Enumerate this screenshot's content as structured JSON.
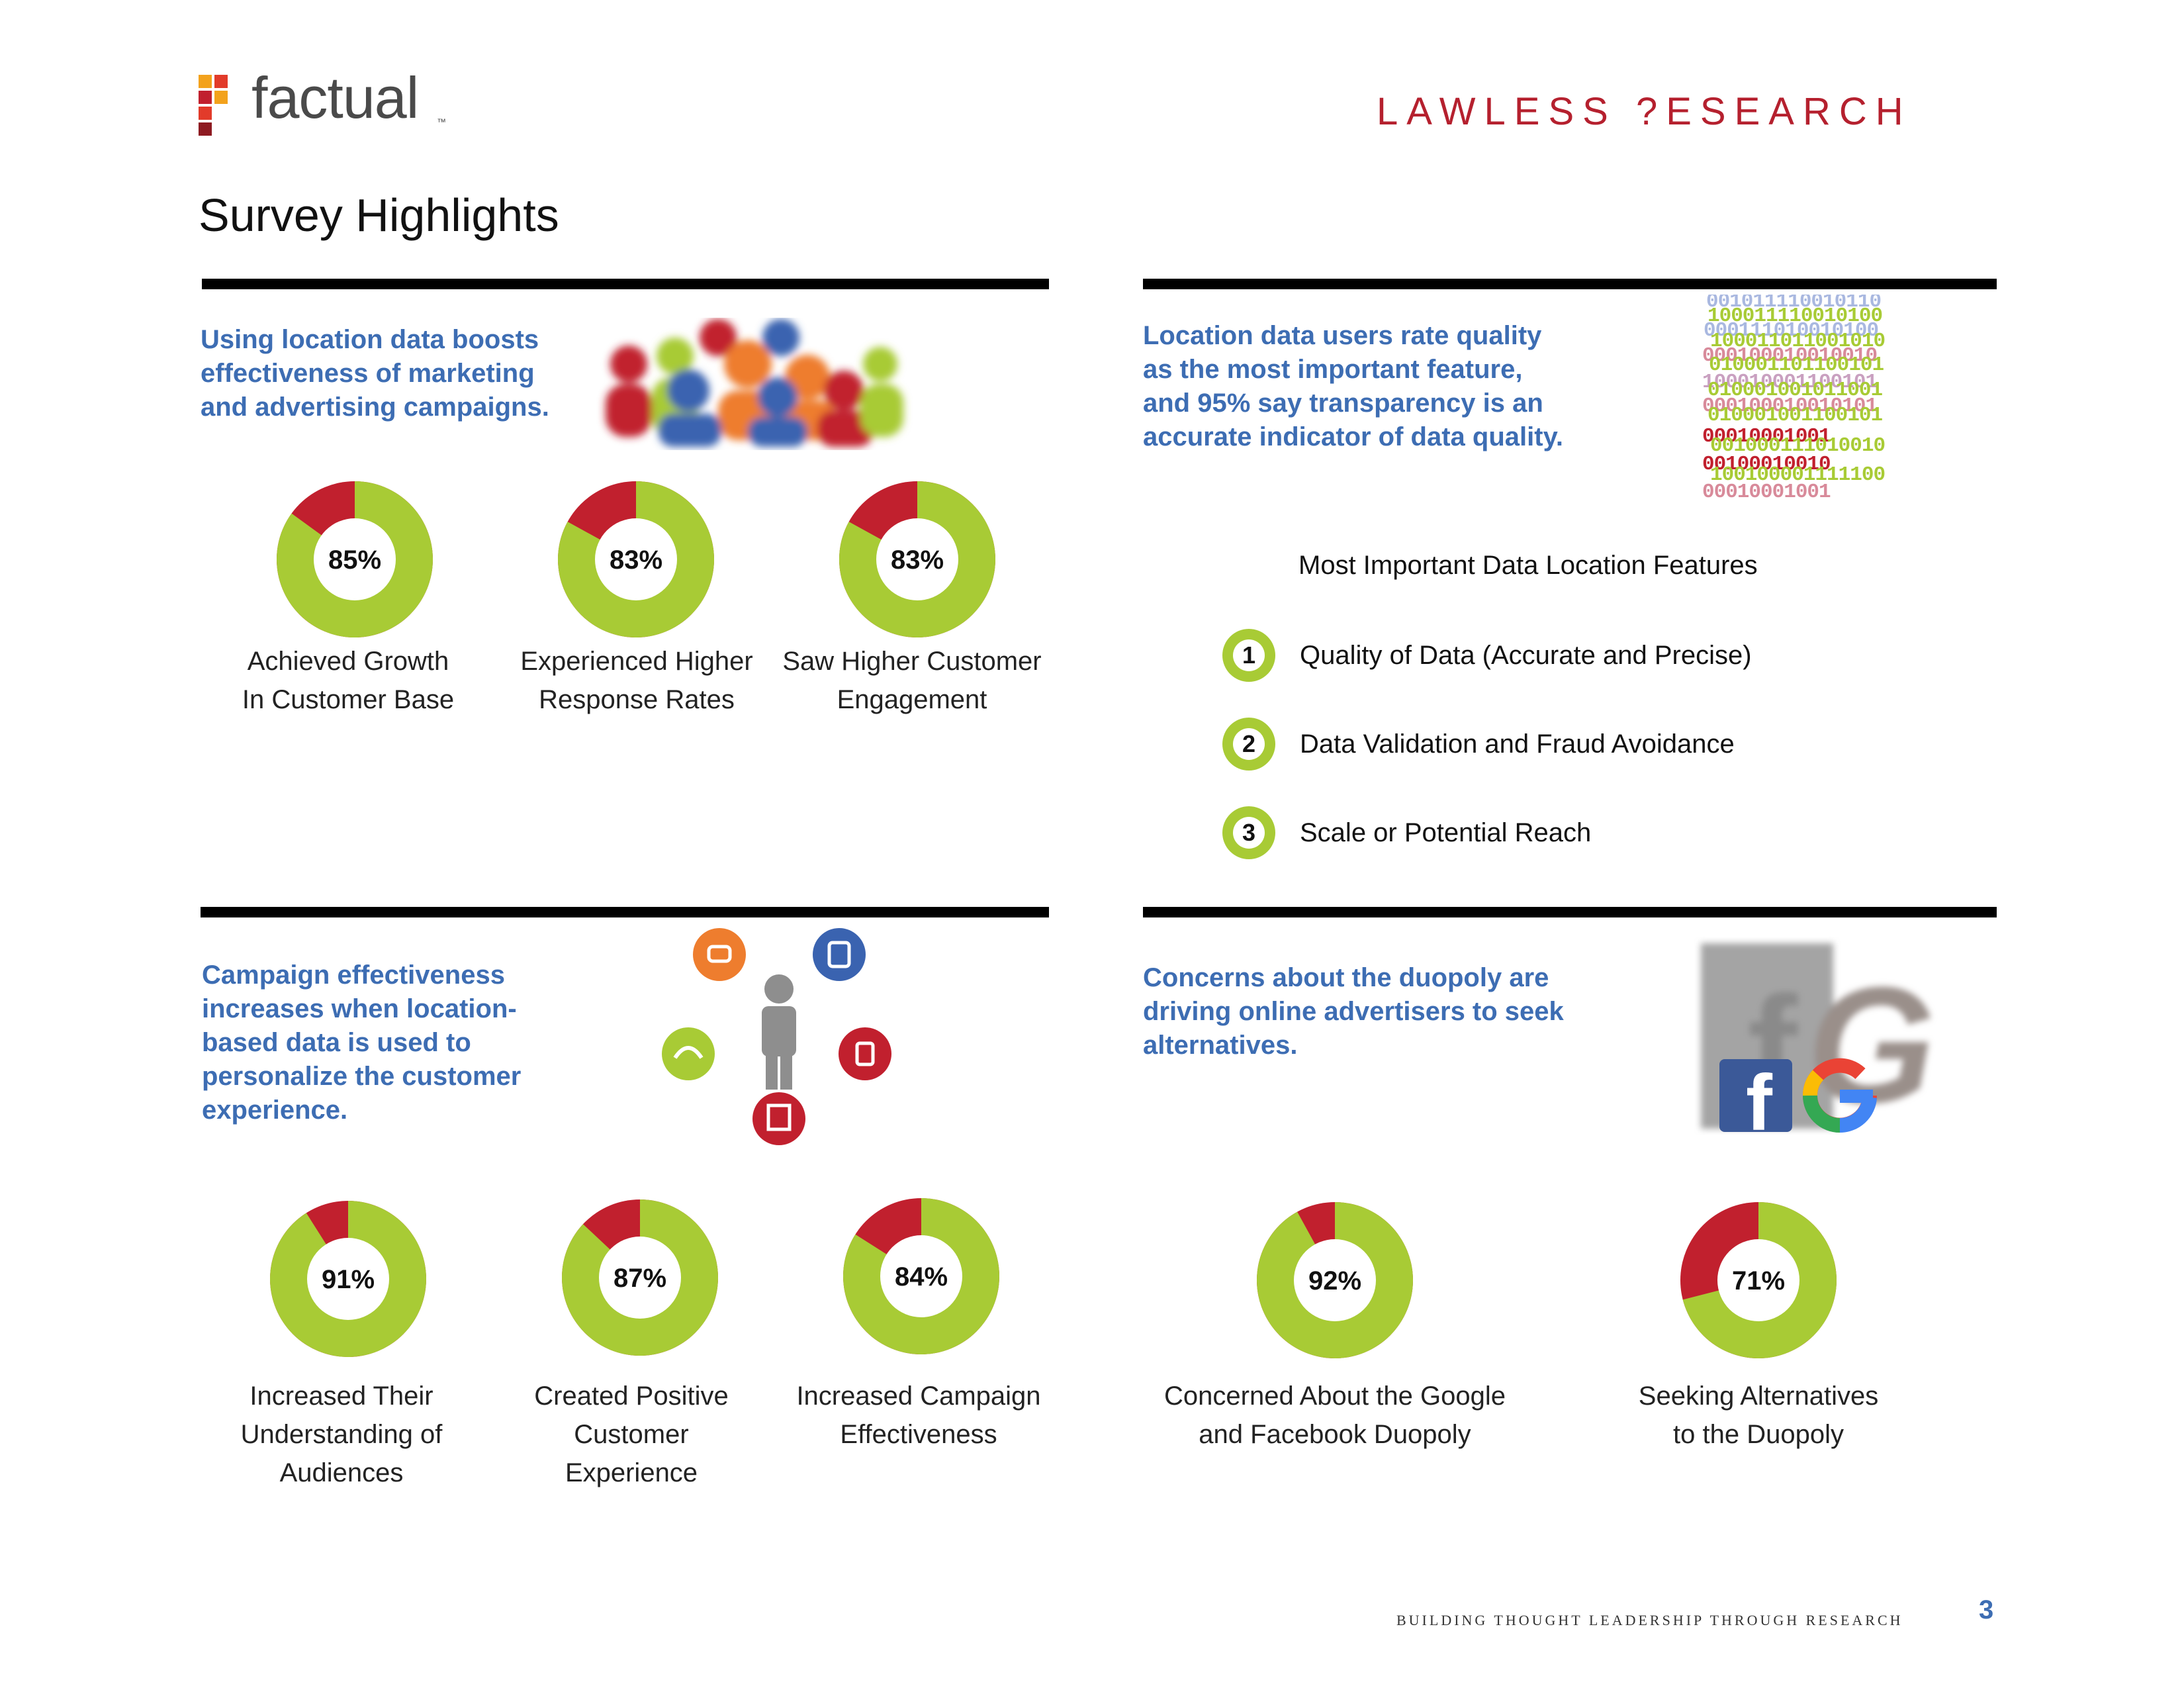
{
  "header": {
    "brand": "factual",
    "brand_tm": "™",
    "partner": "LAWLESS ?ESEARCH",
    "title": "Survey Highlights"
  },
  "colors": {
    "green": "#a8cb35",
    "red": "#c1202e",
    "blue_text": "#3d6db3",
    "accent_red": "#b5202e"
  },
  "panels": {
    "marketing": {
      "heading": [
        "Using location data boosts",
        "effectiveness of marketing",
        "and advertising campaigns."
      ],
      "image_icon": "people-group-icon",
      "stats": [
        {
          "value": 85,
          "label": "85%",
          "caption": [
            "Achieved Growth",
            "In Customer Base"
          ]
        },
        {
          "value": 83,
          "label": "83%",
          "caption": [
            "Experienced Higher",
            "Response Rates"
          ]
        },
        {
          "value": 83,
          "label": "83%",
          "caption": [
            "Saw Higher Customer",
            "Engagement"
          ]
        }
      ]
    },
    "quality": {
      "heading": [
        "Location data users rate quality",
        "as the most important feature,",
        "and 95% say transparency is an",
        "accurate indicator of data quality."
      ],
      "image_icon": "binary-code-icon",
      "features_title": "Most Important Data Location Features",
      "features": [
        {
          "num": "1",
          "label": "Quality of Data (Accurate and Precise)"
        },
        {
          "num": "2",
          "label": "Data Validation and Fraud Avoidance"
        },
        {
          "num": "3",
          "label": "Scale or Potential Reach"
        }
      ]
    },
    "campaign": {
      "heading": [
        "Campaign effectiveness",
        "increases when location-",
        "based data is used to",
        "personalize the customer",
        "experience."
      ],
      "image_icon": "person-with-places-icon",
      "stats": [
        {
          "value": 91,
          "label": "91%",
          "caption": [
            "Increased Their",
            "Understanding of",
            "Audiences"
          ]
        },
        {
          "value": 87,
          "label": "87%",
          "caption": [
            "Created Positive",
            "Customer",
            "Experience"
          ]
        },
        {
          "value": 84,
          "label": "84%",
          "caption": [
            "Increased Campaign",
            "Effectiveness"
          ]
        }
      ]
    },
    "duopoly": {
      "heading": [
        "Concerns about the duopoly are",
        "driving online advertisers to seek",
        "alternatives."
      ],
      "image_icon": "facebook-google-logos-icon",
      "stats": [
        {
          "value": 92,
          "label": "92%",
          "caption": [
            "Concerned About the Google",
            "and Facebook Duopoly"
          ]
        },
        {
          "value": 71,
          "label": "71%",
          "caption": [
            "Seeking Alternatives",
            "to the Duopoly"
          ]
        }
      ]
    }
  },
  "footer": {
    "tagline": "BUILDING THOUGHT LEADERSHIP THROUGH RESEARCH",
    "page": "3"
  }
}
